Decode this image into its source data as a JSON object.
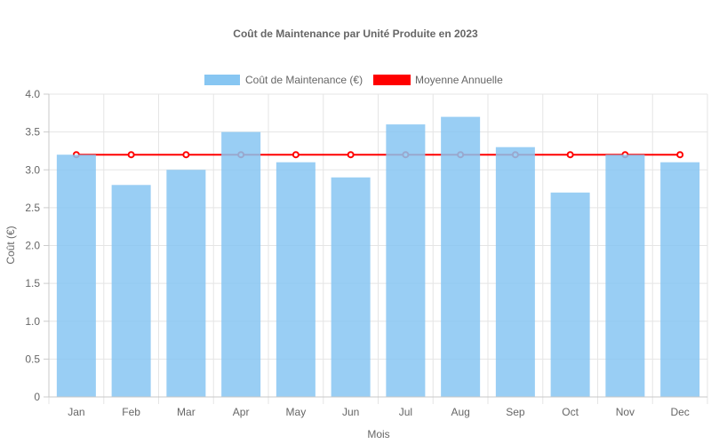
{
  "chart_data": {
    "type": "bar",
    "title": "Coût de Maintenance par Unité Produite en 2023",
    "xlabel": "Mois",
    "ylabel": "Coût (€)",
    "ylim": [
      0,
      4.0
    ],
    "yticks": [
      "0",
      "0.5",
      "1.0",
      "1.5",
      "2.0",
      "2.5",
      "3.0",
      "3.5",
      "4.0"
    ],
    "grid": true,
    "legend_position": "top",
    "categories": [
      "Jan",
      "Feb",
      "Mar",
      "Apr",
      "May",
      "Jun",
      "Jul",
      "Aug",
      "Sep",
      "Oct",
      "Nov",
      "Dec"
    ],
    "series": [
      {
        "name": "Coût de Maintenance (€)",
        "type": "bar",
        "color": "#87c6f2",
        "values": [
          3.2,
          2.8,
          3.0,
          3.5,
          3.1,
          2.9,
          3.6,
          3.7,
          3.3,
          2.7,
          3.2,
          3.1
        ]
      },
      {
        "name": "Moyenne Annuelle",
        "type": "line",
        "color": "#ff0000",
        "values": [
          3.2,
          3.2,
          3.2,
          3.2,
          3.2,
          3.2,
          3.2,
          3.2,
          3.2,
          3.2,
          3.2,
          3.2
        ]
      }
    ]
  }
}
